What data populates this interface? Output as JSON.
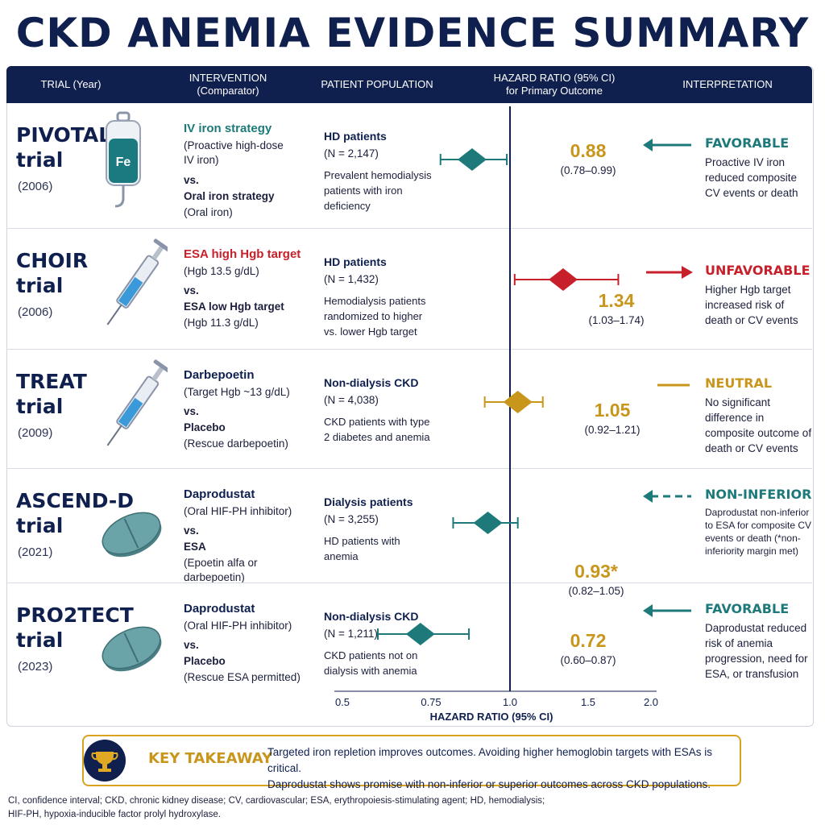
{
  "title": "CKD ANEMIA EVIDENCE SUMMARY",
  "headers": {
    "trial": "TRIAL (Year)",
    "intervention": "INTERVENTION",
    "comparator": "(Comparator)",
    "population": "PATIENT POPULATION",
    "hr1": "HAZARD RATIO (95% CI)",
    "hr2": "for Primary Outcome",
    "interpretation": "INTERPRETATION"
  },
  "colors": {
    "navy": "#0f1f4e",
    "teal": "#1e7a7a",
    "red": "#c8202a",
    "gold": "#c9961c",
    "green_text": "#1e7a7a"
  },
  "rows": [
    {
      "name": "PIVOTAL",
      "suffix": "trial",
      "year": "(2006)",
      "icon": "iv-iron-bag-icon",
      "icon_text": "Fe",
      "int_title": "IV iron strategy",
      "int_color": "#1e7a7a",
      "int_sub1": "(Proactive high-dose",
      "int_sub2": "IV iron)",
      "vs": "vs.",
      "comp_title": "Oral iron strategy",
      "comp_sub1": "(Oral iron)",
      "comp_sub2": "",
      "pop_title": "HD patients",
      "pop_n": "(N = 2,147)",
      "pop_desc": "Prevalent hemodialysis patients with iron deficiency",
      "hr": "0.88",
      "ci": "(0.78–0.99)",
      "hr_color": "#c9961c",
      "verdict": "FAVORABLE",
      "verdict_color": "#1e7a7a",
      "arrow": "left-solid",
      "interp": "Proactive IV iron reduced composite CV events or death",
      "interp_small": false
    },
    {
      "name": "CHOIR",
      "suffix": "trial",
      "year": "(2006)",
      "icon": "syringe-icon",
      "icon_text": "",
      "int_title": "ESA high Hgb target",
      "int_color": "#c8202a",
      "int_sub1": "(Hgb 13.5 g/dL)",
      "int_sub2": "",
      "vs": "vs.",
      "comp_title": "ESA low Hgb target",
      "comp_sub1": "(Hgb 11.3 g/dL)",
      "comp_sub2": "",
      "pop_title": "HD patients",
      "pop_n": "(N = 1,432)",
      "pop_desc": "Hemodialysis patients randomized to higher vs. lower Hgb target",
      "hr": "1.34",
      "ci": "(1.03–1.74)",
      "hr_color": "#c9961c",
      "verdict": "UNFAVORABLE",
      "verdict_color": "#c8202a",
      "arrow": "right-solid",
      "interp": "Higher Hgb target increased risk of death or CV events",
      "interp_small": false
    },
    {
      "name": "TREAT",
      "suffix": "trial",
      "year": "(2009)",
      "icon": "syringe-icon",
      "icon_text": "",
      "int_title": "Darbepoetin",
      "int_color": "#0f1f4e",
      "int_sub1": "(Target Hgb ~13 g/dL)",
      "int_sub2": "",
      "vs": "vs.",
      "comp_title": "Placebo",
      "comp_sub1": "(Rescue darbepoetin)",
      "comp_sub2": "",
      "pop_title": "Non-dialysis CKD",
      "pop_n": "(N = 4,038)",
      "pop_desc": "CKD patients with type 2 diabetes and anemia",
      "hr": "1.05",
      "ci": "(0.92–1.21)",
      "hr_color": "#c9961c",
      "verdict": "NEUTRAL",
      "verdict_color": "#c9961c",
      "arrow": "dash",
      "interp": "No significant difference in composite outcome of death or CV events",
      "interp_small": false
    },
    {
      "name": "ASCEND-D",
      "suffix": "trial",
      "year": "(2021)",
      "icon": "tablet-icon",
      "icon_text": "",
      "int_title": "Daprodustat",
      "int_color": "#0f1f4e",
      "int_sub1": "(Oral HIF-PH inhibitor)",
      "int_sub2": "",
      "vs": "vs.",
      "comp_title": "ESA",
      "comp_sub1": "(Epoetin alfa or",
      "comp_sub2": "darbepoetin)",
      "pop_title": "Dialysis patients",
      "pop_n": "(N = 3,255)",
      "pop_desc": "HD patients with anemia",
      "hr": "0.93*",
      "ci": "(0.82–1.05)",
      "hr_color": "#c9961c",
      "verdict": "NON-INFERIOR",
      "verdict_color": "#1e7a7a",
      "arrow": "left-dashed",
      "interp": "Daprodustat non-inferior to ESA for composite CV events or death (*non-inferiority margin met)",
      "interp_small": true
    },
    {
      "name": "PRO2TECT",
      "suffix": "trial",
      "year": "(2023)",
      "icon": "tablet-icon",
      "icon_text": "",
      "int_title": "Daprodustat",
      "int_color": "#0f1f4e",
      "int_sub1": "(Oral HIF-PH inhibitor)",
      "int_sub2": "",
      "vs": "vs.",
      "comp_title": "Placebo",
      "comp_sub1": "(Rescue ESA permitted)",
      "comp_sub2": "",
      "pop_title": "Non-dialysis CKD",
      "pop_n": "(N = 1,211)",
      "pop_desc": "CKD patients not on dialysis with anemia",
      "hr": "0.72",
      "ci": "(0.60–0.87)",
      "hr_color": "#c9961c",
      "verdict": "FAVORABLE",
      "verdict_color": "#1e7a7a",
      "arrow": "left-solid",
      "interp": "Daprodustat reduced risk of anemia progression, need for ESA, or transfusion",
      "interp_small": false
    }
  ],
  "chart_data": {
    "type": "scatter",
    "xlabel": "HAZARD RATIO (95% CI)",
    "ticks": [
      "0.5",
      "0.75",
      "1.0",
      "1.5",
      "2.0"
    ],
    "reference_line": 1.0,
    "series": [
      {
        "name": "PIVOTAL",
        "hr": 0.88,
        "lo": 0.78,
        "hi": 0.99,
        "color": "#1e7a7a"
      },
      {
        "name": "CHOIR",
        "hr": 1.34,
        "lo": 1.03,
        "hi": 1.74,
        "color": "#c8202a"
      },
      {
        "name": "TREAT",
        "hr": 1.05,
        "lo": 0.92,
        "hi": 1.21,
        "color": "#c9961c"
      },
      {
        "name": "ASCEND-D",
        "hr": 0.93,
        "lo": 0.82,
        "hi": 1.05,
        "color": "#1e7a7a"
      },
      {
        "name": "PRO2TECT",
        "hr": 0.72,
        "lo": 0.6,
        "hi": 0.87,
        "color": "#1e7a7a"
      }
    ]
  },
  "takeaway": {
    "label": "KEY TAKEAWAY",
    "line1": "Targeted iron repletion improves outcomes. Avoiding higher hemoglobin targets with ESAs is critical.",
    "line2": "Daprodustat shows promise with non-inferior or superior outcomes across CKD populations."
  },
  "footnote": {
    "line1": "CI, confidence interval; CKD, chronic kidney disease; CV, cardiovascular; ESA, erythropoiesis-stimulating agent; HD, hemodialysis;",
    "line2": "HIF-PH, hypoxia-inducible factor prolyl hydroxylase."
  }
}
